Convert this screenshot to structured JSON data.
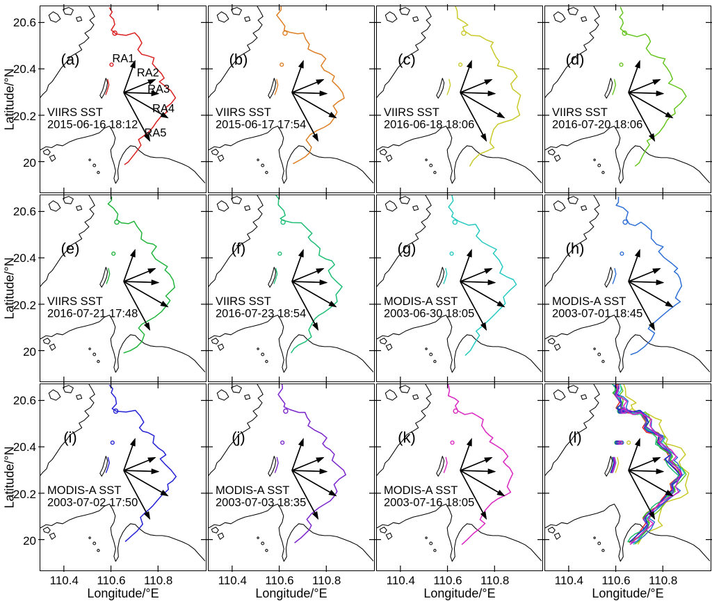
{
  "figure": {
    "description": "Twelve-panel map figure of SST front contours in the Beibu Gulf / Hainan region with radial arrows RA1-RA5"
  },
  "chart_data": {
    "type": "map",
    "xlabel": "Longitude/°E",
    "ylabel": "Latitude/°N",
    "x_range": [
      110.3,
      111.0
    ],
    "y_range": [
      19.87,
      20.67
    ],
    "x_ticks": [
      110.4,
      110.6,
      110.8
    ],
    "y_ticks": [
      20.6,
      20.4,
      20.2,
      20.0
    ],
    "x_tick_labels": [
      "110.4",
      "110.6",
      "110.8"
    ],
    "y_tick_labels": [
      "20.6",
      "20.4",
      "20.2",
      "20"
    ],
    "grid": false,
    "panels": [
      {
        "key": "a",
        "label": "(a)",
        "sensor": "VIIRS SST",
        "datetime": "2015-06-16 18:12",
        "color": "#d92120",
        "shift": 0.0,
        "amp": 0.01
      },
      {
        "key": "b",
        "label": "(b)",
        "sensor": "VIIRS SST",
        "datetime": "2015-06-17 17:54",
        "color": "#dd7e23",
        "shift": 0.012,
        "amp": 0.013
      },
      {
        "key": "c",
        "label": "(c)",
        "sensor": "VIIRS SST",
        "datetime": "2016-06-18 18:06",
        "color": "#c9c929",
        "shift": 0.075,
        "amp": 0.022
      },
      {
        "key": "d",
        "label": "(d)",
        "sensor": "VIIRS SST",
        "datetime": "2016-07-20 18:06",
        "color": "#66c41f",
        "shift": 0.03,
        "amp": 0.014
      },
      {
        "key": "e",
        "label": "(e)",
        "sensor": "VIIRS SST",
        "datetime": "2016-07-21 17:48",
        "color": "#21b43c",
        "shift": 0.012,
        "amp": 0.013
      },
      {
        "key": "f",
        "label": "(f)",
        "sensor": "VIIRS SST",
        "datetime": "2016-07-23 18:54",
        "color": "#1dbd74",
        "shift": 0.0,
        "amp": 0.016
      },
      {
        "key": "g",
        "label": "(g)",
        "sensor": "MODIS-A SST",
        "datetime": "2003-06-30 18:05",
        "color": "#25c9c1",
        "shift": 0.022,
        "amp": 0.015
      },
      {
        "key": "h",
        "label": "(h)",
        "sensor": "MODIS-A SST",
        "datetime": "2003-07-01 18:45",
        "color": "#2e6fd6",
        "shift": 0.034,
        "amp": 0.018
      },
      {
        "key": "i",
        "label": "(i)",
        "sensor": "MODIS-A SST",
        "datetime": "2003-07-02 17:50",
        "color": "#2321d4",
        "shift": 0.006,
        "amp": 0.013
      },
      {
        "key": "j",
        "label": "(j)",
        "sensor": "MODIS-A SST",
        "datetime": "2003-07-03 18:35",
        "color": "#7a24cc",
        "shift": 0.016,
        "amp": 0.012
      },
      {
        "key": "k",
        "label": "(k)",
        "sensor": "MODIS-A SST",
        "datetime": "2003-07-16 18:05",
        "color": "#d925c0",
        "shift": 0.026,
        "amp": 0.014
      },
      {
        "key": "l",
        "label": "(l)",
        "overlay": true
      }
    ],
    "radial_arrows": {
      "labels": [
        "RA1",
        "RA2",
        "RA3",
        "RA4",
        "RA5"
      ],
      "center": [
        0.506,
        0.465
      ],
      "tips": [
        [
          0.576,
          0.291
        ],
        [
          0.701,
          0.394
        ],
        [
          0.721,
          0.471
        ],
        [
          0.777,
          0.603
        ],
        [
          0.666,
          0.729
        ]
      ],
      "label_pos": [
        [
          0.504,
          0.302
        ],
        [
          0.653,
          0.379
        ],
        [
          0.718,
          0.466
        ],
        [
          0.747,
          0.572
        ],
        [
          0.698,
          0.702
        ]
      ]
    },
    "coast": {
      "mainland": [
        [
          0.295,
          0
        ],
        [
          0.315,
          0.03
        ],
        [
          0.33,
          0.055
        ],
        [
          0.3,
          0.075
        ],
        [
          0.325,
          0.1
        ],
        [
          0.305,
          0.125
        ],
        [
          0.27,
          0.145
        ],
        [
          0.295,
          0.17
        ],
        [
          0.265,
          0.195
        ],
        [
          0.235,
          0.21
        ],
        [
          0.252,
          0.235
        ],
        [
          0.215,
          0.255
        ],
        [
          0.182,
          0.272
        ],
        [
          0.16,
          0.3
        ],
        [
          0.128,
          0.332
        ],
        [
          0.098,
          0.372
        ],
        [
          0.072,
          0.406
        ],
        [
          0.05,
          0.424
        ],
        [
          0.038,
          0.456
        ],
        [
          0.014,
          0.476
        ],
        [
          0,
          0.492
        ]
      ],
      "nw_islands": [
        [
          [
            0.052,
            0.048
          ],
          [
            0.078,
            0.03
          ],
          [
            0.105,
            0.044
          ],
          [
            0.122,
            0.068
          ],
          [
            0.095,
            0.086
          ],
          [
            0.063,
            0.076
          ]
        ],
        [
          [
            0.138,
            0.018
          ],
          [
            0.172,
            0.006
          ],
          [
            0.2,
            0.02
          ],
          [
            0.186,
            0.046
          ],
          [
            0.15,
            0.042
          ]
        ],
        [
          [
            0.218,
            0.062
          ],
          [
            0.244,
            0.056
          ],
          [
            0.252,
            0.076
          ],
          [
            0.226,
            0.082
          ]
        ]
      ],
      "sliver_island": [
        [
          0.398,
          0.388
        ],
        [
          0.408,
          0.412
        ],
        [
          0.402,
          0.442
        ],
        [
          0.388,
          0.472
        ],
        [
          0.372,
          0.496
        ],
        [
          0.362,
          0.48
        ],
        [
          0.378,
          0.452
        ],
        [
          0.388,
          0.42
        ]
      ],
      "south_coast": [
        [
          0,
          0.775
        ],
        [
          0.035,
          0.757
        ],
        [
          0.068,
          0.762
        ],
        [
          0.1,
          0.746
        ],
        [
          0.135,
          0.752
        ],
        [
          0.175,
          0.732
        ],
        [
          0.22,
          0.716
        ],
        [
          0.27,
          0.706
        ],
        [
          0.315,
          0.696
        ],
        [
          0.358,
          0.682
        ],
        [
          0.39,
          0.657
        ],
        [
          0.42,
          0.646
        ],
        [
          0.44,
          0.676
        ],
        [
          0.455,
          0.71
        ],
        [
          0.447,
          0.744
        ],
        [
          0.427,
          0.774
        ],
        [
          0.432,
          0.81
        ],
        [
          0.447,
          0.85
        ],
        [
          0.457,
          0.888
        ],
        [
          0.447,
          0.928
        ],
        [
          0.457,
          0.955
        ],
        [
          0.474,
          0.93
        ],
        [
          0.47,
          0.885
        ],
        [
          0.48,
          0.838
        ],
        [
          0.5,
          0.8
        ],
        [
          0.522,
          0.772
        ],
        [
          0.547,
          0.752
        ],
        [
          0.576,
          0.756
        ],
        [
          0.6,
          0.778
        ],
        [
          0.632,
          0.8
        ],
        [
          0.667,
          0.812
        ],
        [
          0.702,
          0.816
        ],
        [
          0.74,
          0.816
        ],
        [
          0.78,
          0.822
        ],
        [
          0.822,
          0.836
        ],
        [
          0.862,
          0.85
        ],
        [
          0.9,
          0.866
        ],
        [
          0.936,
          0.89
        ],
        [
          0.966,
          0.92
        ],
        [
          1,
          0.953
        ]
      ],
      "estuary": [
        [
          [
            0.018,
            0.782
          ],
          [
            0.044,
            0.77
          ],
          [
            0.06,
            0.786
          ],
          [
            0.048,
            0.802
          ],
          [
            0.024,
            0.796
          ]
        ],
        [
          [
            0.056,
            0.812
          ],
          [
            0.082,
            0.802
          ],
          [
            0.092,
            0.822
          ],
          [
            0.07,
            0.836
          ]
        ]
      ],
      "islets": [
        [
          0.328,
          0.858,
          0.008
        ],
        [
          0.352,
          0.896,
          0.007
        ],
        [
          0.3,
          0.828,
          0.005
        ]
      ]
    },
    "front_base": [
      [
        0.418,
        0
      ],
      [
        0.428,
        0.028
      ],
      [
        0.412,
        0.054
      ],
      [
        0.44,
        0.076
      ],
      [
        0.456,
        0.1
      ],
      [
        0.44,
        0.124
      ],
      [
        0.468,
        0.144
      ],
      [
        0.52,
        0.156
      ],
      [
        0.565,
        0.148
      ],
      [
        0.588,
        0.172
      ],
      [
        0.612,
        0.198
      ],
      [
        0.596,
        0.228
      ],
      [
        0.625,
        0.254
      ],
      [
        0.66,
        0.268
      ],
      [
        0.69,
        0.284
      ],
      [
        0.672,
        0.314
      ],
      [
        0.7,
        0.338
      ],
      [
        0.732,
        0.358
      ],
      [
        0.756,
        0.384
      ],
      [
        0.732,
        0.41
      ],
      [
        0.762,
        0.434
      ],
      [
        0.792,
        0.458
      ],
      [
        0.812,
        0.49
      ],
      [
        0.784,
        0.518
      ],
      [
        0.757,
        0.545
      ],
      [
        0.772,
        0.575
      ],
      [
        0.742,
        0.6
      ],
      [
        0.712,
        0.625
      ],
      [
        0.682,
        0.648
      ],
      [
        0.648,
        0.674
      ],
      [
        0.616,
        0.7
      ],
      [
        0.592,
        0.724
      ],
      [
        0.616,
        0.754
      ],
      [
        0.592,
        0.784
      ],
      [
        0.562,
        0.81
      ],
      [
        0.532,
        0.836
      ],
      [
        0.502,
        0.856
      ]
    ],
    "front_loops": [
      [
        0.452,
        0.145,
        0.013
      ],
      [
        0.432,
        0.315,
        0.01
      ]
    ],
    "front_arc": [
      [
        0.408,
        0.393
      ],
      [
        0.416,
        0.424
      ],
      [
        0.406,
        0.455
      ],
      [
        0.396,
        0.478
      ]
    ]
  }
}
